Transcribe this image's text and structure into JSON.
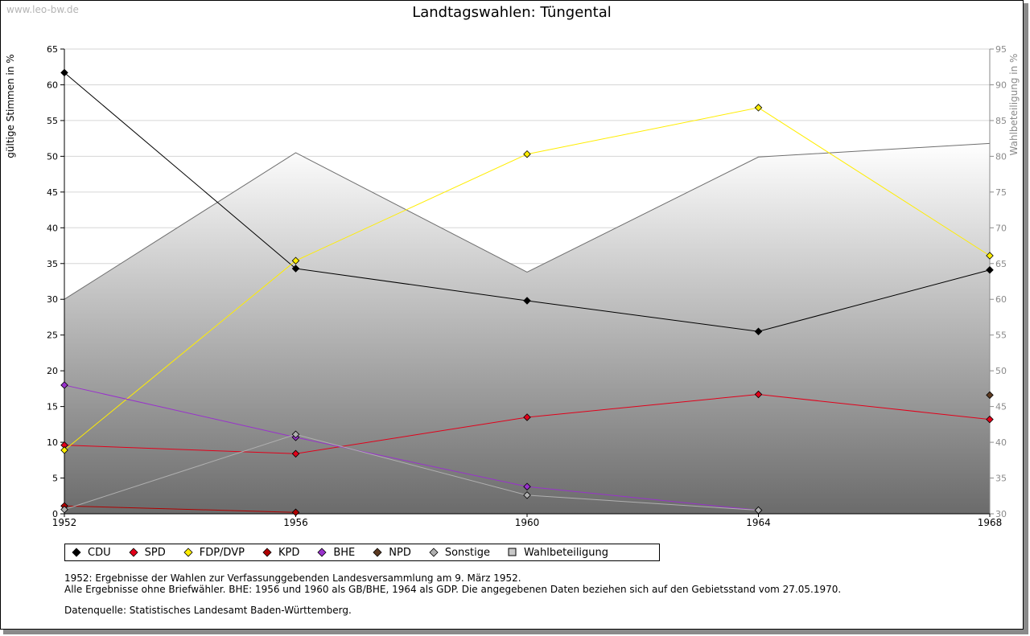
{
  "watermark": "www.leo-bw.de",
  "chart_data": {
    "type": "line",
    "title": "Landtagswahlen: Tüngental",
    "ylabel": "gültige Stimmen in %",
    "y2label": "Wahlbeteiligung in %",
    "categories": [
      "1952",
      "1956",
      "1960",
      "1964",
      "1968"
    ],
    "ylim": [
      0,
      65
    ],
    "y2lim": [
      30,
      95
    ],
    "yticks": [
      0,
      5,
      10,
      15,
      20,
      25,
      30,
      35,
      40,
      45,
      50,
      55,
      60,
      65
    ],
    "y2ticks": [
      30,
      35,
      40,
      45,
      50,
      55,
      60,
      65,
      70,
      75,
      80,
      85,
      90,
      95
    ],
    "grid": true,
    "legend_position": "bottom",
    "series": [
      {
        "name": "CDU",
        "color": "#000000",
        "values": [
          61.7,
          34.3,
          29.8,
          25.5,
          34.1
        ]
      },
      {
        "name": "SPD",
        "color": "#e2001a",
        "values": [
          9.6,
          8.4,
          13.5,
          16.7,
          13.2
        ]
      },
      {
        "name": "FDP/DVP",
        "color": "#ffed00",
        "values": [
          8.9,
          35.4,
          50.3,
          56.8,
          36.1
        ]
      },
      {
        "name": "KPD",
        "color": "#b00000",
        "values": [
          1.1,
          0.2,
          null,
          null,
          null
        ]
      },
      {
        "name": "BHE",
        "color": "#9932cc",
        "values": [
          18.0,
          10.7,
          3.8,
          0.5,
          null
        ]
      },
      {
        "name": "NPD",
        "color": "#5c3a21",
        "values": [
          null,
          null,
          null,
          null,
          16.6
        ]
      },
      {
        "name": "Sonstige",
        "color": "#b0b0b0",
        "values": [
          0.6,
          11.1,
          2.6,
          0.5,
          null
        ]
      }
    ],
    "turnout": {
      "name": "Wahlbeteiligung",
      "values": [
        60.0,
        80.5,
        63.8,
        79.9,
        81.8
      ]
    }
  },
  "notes": [
    "1952: Ergebnisse der Wahlen zur Verfassunggebenden Landesversammlung am 9. März 1952.",
    "Alle Ergebnisse ohne Briefwähler. BHE: 1956 und 1960 als GB/BHE, 1964 als GDP. Die angegebenen Daten beziehen sich auf den Gebietsstand vom 27.05.1970."
  ],
  "source": "Datenquelle: Statistisches Landesamt Baden-Württemberg."
}
